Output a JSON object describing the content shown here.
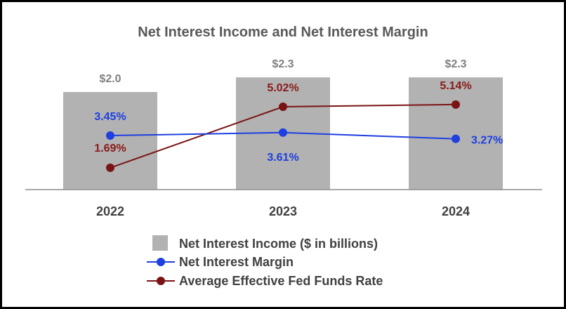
{
  "chart_data": {
    "type": "bar",
    "title": "Net Interest Income and Net Interest Margin",
    "categories": [
      "2022",
      "2023",
      "2024"
    ],
    "series": [
      {
        "name": "Net Interest Income ($ in billions)",
        "kind": "bar",
        "values": [
          2.0,
          2.3,
          2.3
        ],
        "labels": [
          "$2.0",
          "$2.3",
          "$2.3"
        ],
        "color": "#b2b2b2"
      },
      {
        "name": "Net Interest Margin",
        "kind": "line",
        "values": [
          3.45,
          3.61,
          3.27
        ],
        "labels": [
          "3.45%",
          "3.61%",
          "3.27%"
        ],
        "color": "#1f3fe0",
        "label_color": "#1f3fe0"
      },
      {
        "name": "Average Effective Fed Funds Rate",
        "kind": "line",
        "values": [
          1.69,
          5.02,
          5.14
        ],
        "labels": [
          "1.69%",
          "5.02%",
          "5.14%"
        ],
        "color": "#7a1414",
        "label_color": "#8b1a1a"
      }
    ],
    "xlabel": "",
    "ylabel": "",
    "legend_position": "bottom",
    "grid": false
  }
}
